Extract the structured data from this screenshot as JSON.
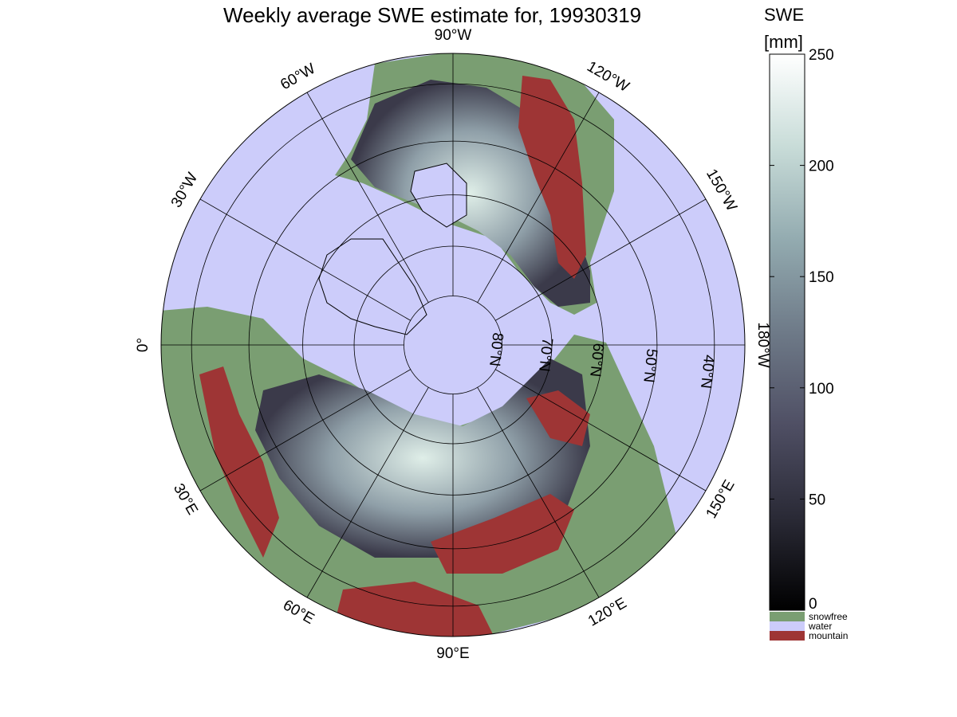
{
  "title": "Weekly average SWE estimate for, 19930319",
  "map": {
    "projection": "north polar stereographic",
    "colors": {
      "water": "#ccccfa",
      "snowfree": "#7a9e72",
      "mountain": "#9e3535",
      "coastline": "#000000",
      "grid": "#000000"
    },
    "longitude_labels": [
      {
        "text": "90°W",
        "lon_deg": 90
      },
      {
        "text": "120°W",
        "lon_deg": 120
      },
      {
        "text": "150°W",
        "lon_deg": 150
      },
      {
        "text": "180°W",
        "lon_deg": 180
      },
      {
        "text": "150°E",
        "lon_deg": 210
      },
      {
        "text": "120°E",
        "lon_deg": 240
      },
      {
        "text": "90°E",
        "lon_deg": 270
      },
      {
        "text": "60°E",
        "lon_deg": 300
      },
      {
        "text": "30°E",
        "lon_deg": 330
      },
      {
        "text": "0°",
        "lon_deg": 0
      },
      {
        "text": "30°W",
        "lon_deg": 30
      },
      {
        "text": "60°W",
        "lon_deg": 60
      }
    ],
    "latitude_labels": [
      {
        "text": "80°N",
        "lat": 80
      },
      {
        "text": "70°N",
        "lat": 70
      },
      {
        "text": "60°N",
        "lat": 60
      },
      {
        "text": "50°N",
        "lat": 50
      },
      {
        "text": "40°N",
        "lat": 40
      }
    ],
    "outer_latitude": 35,
    "parallels": [
      80,
      70,
      60,
      50,
      40
    ],
    "meridian_step_deg": 30
  },
  "colorbar": {
    "title": "SWE",
    "unit": "[mm]",
    "min": 0,
    "max": 250,
    "ticks": [
      0,
      50,
      100,
      150,
      200,
      250
    ],
    "gradient": [
      "#000000",
      "#2a2a36",
      "#4f4f64",
      "#6e7a88",
      "#93abb0",
      "#c8dcd8",
      "#ffffff"
    ],
    "categories": [
      {
        "label": "snowfree",
        "color": "#7a9e72"
      },
      {
        "label": "water",
        "color": "#ccccfa"
      },
      {
        "label": "mountain",
        "color": "#9e3535"
      }
    ]
  }
}
